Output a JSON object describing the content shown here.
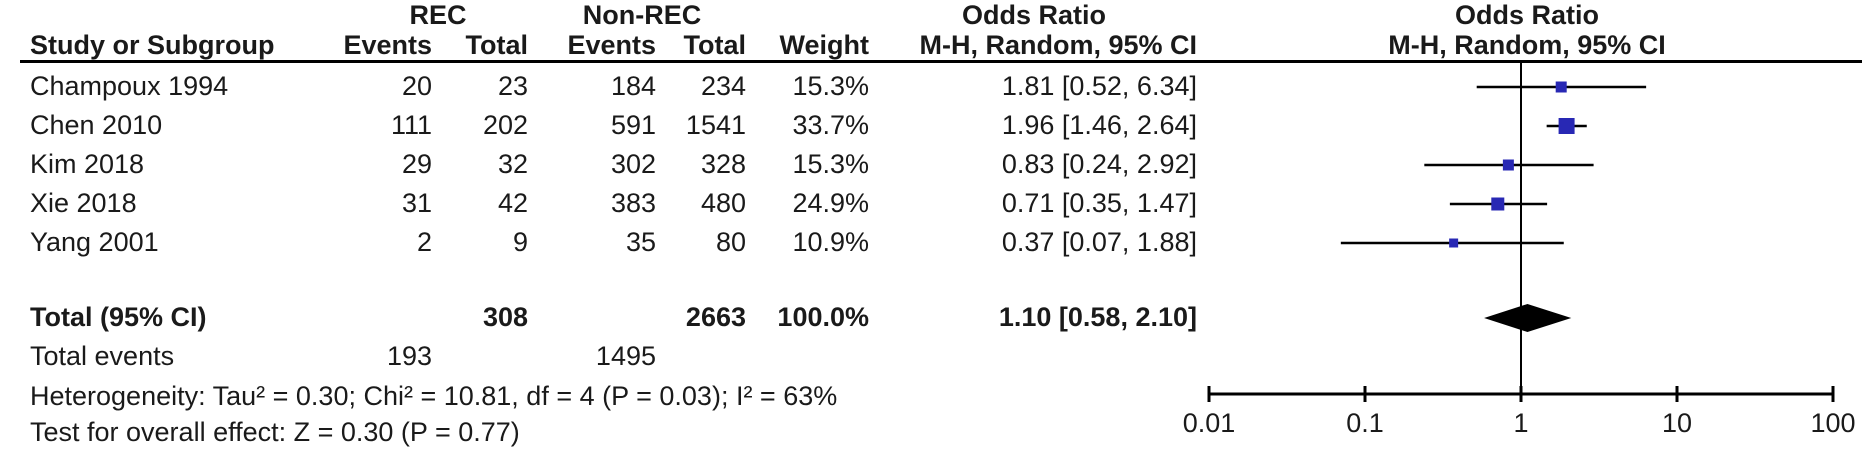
{
  "header": {
    "group_rec": "REC",
    "group_nonrec": "Non-REC",
    "or_col_title": "Odds Ratio",
    "or_plot_title": "Odds Ratio",
    "col_study": "Study or Subgroup",
    "col_events_rec": "Events",
    "col_total_rec": "Total",
    "col_events_nonrec": "Events",
    "col_total_nonrec": "Total",
    "col_weight": "Weight",
    "col_or_ci": "M-H, Random, 95% CI",
    "col_or_ci_plot": "M-H, Random, 95% CI"
  },
  "table": {
    "rows": [
      {
        "name": "Champoux 1994",
        "rec_events": "20",
        "rec_total": "23",
        "nonrec_events": "184",
        "nonrec_total": "234",
        "weight": "15.3%",
        "or_ci": "1.81 [0.52, 6.34]"
      },
      {
        "name": "Chen 2010",
        "rec_events": "111",
        "rec_total": "202",
        "nonrec_events": "591",
        "nonrec_total": "1541",
        "weight": "33.7%",
        "or_ci": "1.96 [1.46, 2.64]"
      },
      {
        "name": "Kim 2018",
        "rec_events": "29",
        "rec_total": "32",
        "nonrec_events": "302",
        "nonrec_total": "328",
        "weight": "15.3%",
        "or_ci": "0.83 [0.24, 2.92]"
      },
      {
        "name": "Xie 2018",
        "rec_events": "31",
        "rec_total": "42",
        "nonrec_events": "383",
        "nonrec_total": "480",
        "weight": "24.9%",
        "or_ci": "0.71 [0.35, 1.47]"
      },
      {
        "name": "Yang 2001",
        "rec_events": "2",
        "rec_total": "9",
        "nonrec_events": "35",
        "nonrec_total": "80",
        "weight": "10.9%",
        "or_ci": "0.37 [0.07, 1.88]"
      }
    ],
    "total": {
      "label": "Total (95% CI)",
      "rec_total": "308",
      "nonrec_total": "2663",
      "weight": "100.0%",
      "or_ci": "1.10 [0.58, 2.10]"
    },
    "total_events": {
      "label": "Total events",
      "rec_events": "193",
      "nonrec_events": "1495"
    }
  },
  "footnotes": {
    "heterogeneity": "Heterogeneity: Tau² = 0.30; Chi² = 10.81, df = 4 (P = 0.03); I² = 63%",
    "overall_effect": "Test for overall effect: Z = 0.30 (P = 0.77)"
  },
  "axis": {
    "tick_labels": [
      "0.01",
      "0.1",
      "1",
      "10",
      "100"
    ],
    "tick_values": [
      0.01,
      0.1,
      1,
      10,
      100
    ]
  },
  "colors": {
    "marker_blue": "#2828B4",
    "diamond_black": "#000000",
    "line_black": "#000000"
  },
  "chart_data": {
    "type": "scatter",
    "subtype": "forest-plot",
    "title": "Odds Ratio M-H, Random, 95% CI",
    "x_scale": "log10",
    "x_ticks": [
      0.01,
      0.1,
      1,
      10,
      100
    ],
    "xlim": [
      0.01,
      100
    ],
    "null_line": 1,
    "points": [
      {
        "label": "Champoux 1994",
        "or": 1.81,
        "ci_low": 0.52,
        "ci_high": 6.34,
        "weight_pct": 15.3
      },
      {
        "label": "Chen 2010",
        "or": 1.96,
        "ci_low": 1.46,
        "ci_high": 2.64,
        "weight_pct": 33.7
      },
      {
        "label": "Kim 2018",
        "or": 0.83,
        "ci_low": 0.24,
        "ci_high": 2.92,
        "weight_pct": 15.3
      },
      {
        "label": "Xie 2018",
        "or": 0.71,
        "ci_low": 0.35,
        "ci_high": 1.47,
        "weight_pct": 24.9
      },
      {
        "label": "Yang 2001",
        "or": 0.37,
        "ci_low": 0.07,
        "ci_high": 1.88,
        "weight_pct": 10.9
      }
    ],
    "pooled": {
      "label": "Total (95% CI)",
      "or": 1.1,
      "ci_low": 0.58,
      "ci_high": 2.1,
      "weight_pct": 100.0
    }
  }
}
